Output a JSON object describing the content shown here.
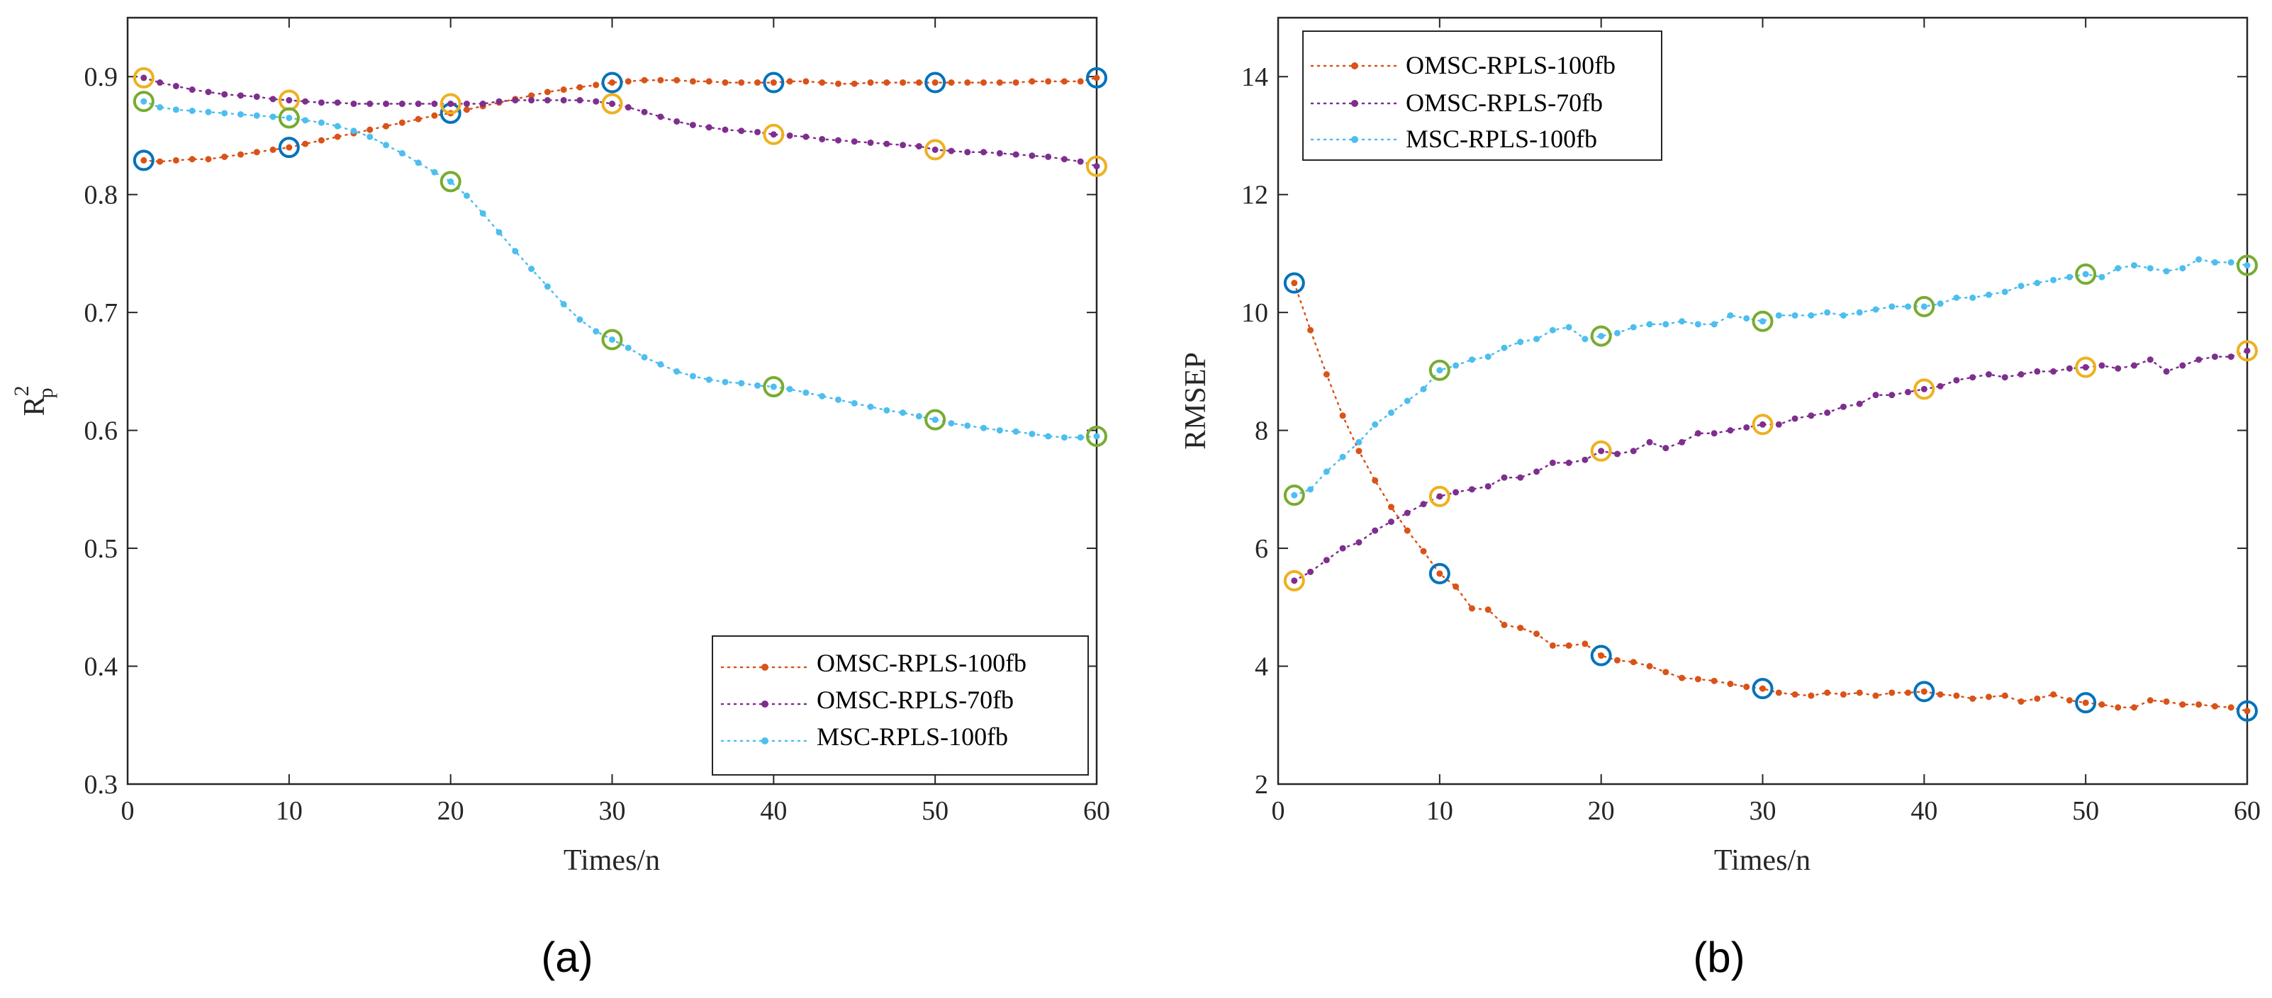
{
  "chart_data": [
    {
      "type": "line",
      "panel_label": "(a)",
      "xlabel": "Times/n",
      "ylabel": "R",
      "ylabel_sup": "2",
      "ylabel_sub": "p",
      "xlim": [
        0,
        60
      ],
      "ylim": [
        0.3,
        0.95
      ],
      "xticks": [
        "0",
        "10",
        "20",
        "30",
        "40",
        "50",
        "60"
      ],
      "yticks": [
        "0.3",
        "0.4",
        "0.5",
        "0.6",
        "0.7",
        "0.8",
        "0.9"
      ],
      "grid": false,
      "legend_position": "bottom-right",
      "series": [
        {
          "name": "OMSC-RPLS-100fb",
          "color": "#D95319",
          "x": [
            1,
            2,
            3,
            4,
            5,
            6,
            7,
            8,
            9,
            10,
            11,
            12,
            13,
            14,
            15,
            16,
            17,
            18,
            19,
            20,
            21,
            22,
            23,
            24,
            25,
            26,
            27,
            28,
            29,
            30,
            31,
            32,
            33,
            34,
            35,
            36,
            37,
            38,
            39,
            40,
            41,
            42,
            43,
            44,
            45,
            46,
            47,
            48,
            49,
            50,
            51,
            52,
            53,
            54,
            55,
            56,
            57,
            58,
            59,
            60
          ],
          "values": [
            0.829,
            0.828,
            0.829,
            0.83,
            0.83,
            0.832,
            0.834,
            0.836,
            0.838,
            0.84,
            0.843,
            0.846,
            0.849,
            0.852,
            0.855,
            0.858,
            0.861,
            0.864,
            0.867,
            0.869,
            0.872,
            0.875,
            0.878,
            0.881,
            0.884,
            0.887,
            0.889,
            0.891,
            0.893,
            0.895,
            0.896,
            0.897,
            0.897,
            0.897,
            0.896,
            0.896,
            0.895,
            0.895,
            0.895,
            0.895,
            0.896,
            0.896,
            0.895,
            0.894,
            0.894,
            0.895,
            0.895,
            0.895,
            0.895,
            0.895,
            0.895,
            0.895,
            0.895,
            0.895,
            0.895,
            0.896,
            0.896,
            0.896,
            0.896,
            0.899
          ],
          "markers": [
            {
              "x": 1,
              "y": 0.829,
              "color": "#0072BD"
            },
            {
              "x": 10,
              "y": 0.84,
              "color": "#0072BD"
            },
            {
              "x": 20,
              "y": 0.869,
              "color": "#0072BD"
            },
            {
              "x": 30,
              "y": 0.895,
              "color": "#0072BD"
            },
            {
              "x": 40,
              "y": 0.895,
              "color": "#0072BD"
            },
            {
              "x": 50,
              "y": 0.895,
              "color": "#0072BD"
            },
            {
              "x": 60,
              "y": 0.899,
              "color": "#0072BD"
            }
          ]
        },
        {
          "name": "OMSC-RPLS-70fb",
          "color": "#7E2F8E",
          "x": [
            1,
            2,
            3,
            4,
            5,
            6,
            7,
            8,
            9,
            10,
            11,
            12,
            13,
            14,
            15,
            16,
            17,
            18,
            19,
            20,
            21,
            22,
            23,
            24,
            25,
            26,
            27,
            28,
            29,
            30,
            31,
            32,
            33,
            34,
            35,
            36,
            37,
            38,
            39,
            40,
            41,
            42,
            43,
            44,
            45,
            46,
            47,
            48,
            49,
            50,
            51,
            52,
            53,
            54,
            55,
            56,
            57,
            58,
            59,
            60
          ],
          "values": [
            0.899,
            0.895,
            0.892,
            0.889,
            0.887,
            0.885,
            0.884,
            0.883,
            0.881,
            0.88,
            0.879,
            0.878,
            0.878,
            0.877,
            0.877,
            0.877,
            0.877,
            0.877,
            0.877,
            0.877,
            0.877,
            0.877,
            0.879,
            0.88,
            0.88,
            0.88,
            0.88,
            0.88,
            0.879,
            0.877,
            0.874,
            0.87,
            0.866,
            0.862,
            0.859,
            0.857,
            0.855,
            0.854,
            0.853,
            0.851,
            0.85,
            0.849,
            0.847,
            0.846,
            0.845,
            0.844,
            0.843,
            0.842,
            0.841,
            0.838,
            0.837,
            0.836,
            0.836,
            0.835,
            0.834,
            0.833,
            0.832,
            0.83,
            0.828,
            0.824
          ],
          "markers": [
            {
              "x": 1,
              "y": 0.899,
              "color": "#EDB120"
            },
            {
              "x": 10,
              "y": 0.88,
              "color": "#EDB120"
            },
            {
              "x": 20,
              "y": 0.877,
              "color": "#EDB120"
            },
            {
              "x": 30,
              "y": 0.877,
              "color": "#EDB120"
            },
            {
              "x": 40,
              "y": 0.851,
              "color": "#EDB120"
            },
            {
              "x": 50,
              "y": 0.838,
              "color": "#EDB120"
            },
            {
              "x": 60,
              "y": 0.824,
              "color": "#EDB120"
            }
          ]
        },
        {
          "name": "MSC-RPLS-100fb",
          "color": "#4DBEEE",
          "x": [
            1,
            2,
            3,
            4,
            5,
            6,
            7,
            8,
            9,
            10,
            11,
            12,
            13,
            14,
            15,
            16,
            17,
            18,
            19,
            20,
            21,
            22,
            23,
            24,
            25,
            26,
            27,
            28,
            29,
            30,
            31,
            32,
            33,
            34,
            35,
            36,
            37,
            38,
            39,
            40,
            41,
            42,
            43,
            44,
            45,
            46,
            47,
            48,
            49,
            50,
            51,
            52,
            53,
            54,
            55,
            56,
            57,
            58,
            59,
            60
          ],
          "values": [
            0.879,
            0.874,
            0.872,
            0.871,
            0.87,
            0.869,
            0.868,
            0.867,
            0.866,
            0.865,
            0.863,
            0.861,
            0.858,
            0.854,
            0.849,
            0.842,
            0.835,
            0.827,
            0.819,
            0.811,
            0.799,
            0.784,
            0.768,
            0.752,
            0.737,
            0.722,
            0.707,
            0.694,
            0.684,
            0.677,
            0.67,
            0.662,
            0.656,
            0.65,
            0.646,
            0.643,
            0.641,
            0.64,
            0.638,
            0.637,
            0.635,
            0.632,
            0.629,
            0.626,
            0.623,
            0.62,
            0.617,
            0.615,
            0.612,
            0.609,
            0.606,
            0.604,
            0.602,
            0.6,
            0.599,
            0.597,
            0.595,
            0.594,
            0.594,
            0.595
          ],
          "markers": [
            {
              "x": 1,
              "y": 0.879,
              "color": "#77AC30"
            },
            {
              "x": 10,
              "y": 0.865,
              "color": "#77AC30"
            },
            {
              "x": 20,
              "y": 0.811,
              "color": "#77AC30"
            },
            {
              "x": 30,
              "y": 0.677,
              "color": "#77AC30"
            },
            {
              "x": 40,
              "y": 0.637,
              "color": "#77AC30"
            },
            {
              "x": 50,
              "y": 0.609,
              "color": "#77AC30"
            },
            {
              "x": 60,
              "y": 0.595,
              "color": "#77AC30"
            }
          ]
        }
      ]
    },
    {
      "type": "line",
      "panel_label": "(b)",
      "xlabel": "Times/n",
      "ylabel": "RMSEP",
      "xlim": [
        0,
        60
      ],
      "ylim": [
        2,
        15
      ],
      "xticks": [
        "0",
        "10",
        "20",
        "30",
        "40",
        "50",
        "60"
      ],
      "yticks": [
        "2",
        "4",
        "6",
        "8",
        "10",
        "12",
        "14"
      ],
      "grid": false,
      "legend_position": "top-left",
      "series": [
        {
          "name": "OMSC-RPLS-100fb",
          "color": "#D95319",
          "x": [
            1,
            2,
            3,
            4,
            5,
            6,
            7,
            8,
            9,
            10,
            11,
            12,
            13,
            14,
            15,
            16,
            17,
            18,
            19,
            20,
            21,
            22,
            23,
            24,
            25,
            26,
            27,
            28,
            29,
            30,
            31,
            32,
            33,
            34,
            35,
            36,
            37,
            38,
            39,
            40,
            41,
            42,
            43,
            44,
            45,
            46,
            47,
            48,
            49,
            50,
            51,
            52,
            53,
            54,
            55,
            56,
            57,
            58,
            59,
            60
          ],
          "values": [
            10.5,
            9.7,
            8.95,
            8.25,
            7.65,
            7.15,
            6.7,
            6.3,
            5.95,
            5.57,
            5.35,
            4.98,
            4.96,
            4.7,
            4.65,
            4.55,
            4.35,
            4.35,
            4.38,
            4.18,
            4.1,
            4.07,
            4.0,
            3.9,
            3.8,
            3.78,
            3.75,
            3.7,
            3.65,
            3.62,
            3.55,
            3.52,
            3.5,
            3.55,
            3.52,
            3.55,
            3.5,
            3.55,
            3.55,
            3.57,
            3.52,
            3.5,
            3.45,
            3.48,
            3.5,
            3.4,
            3.45,
            3.52,
            3.42,
            3.38,
            3.35,
            3.3,
            3.3,
            3.42,
            3.4,
            3.35,
            3.35,
            3.32,
            3.3,
            3.24
          ],
          "markers": [
            {
              "x": 1,
              "y": 10.5,
              "color": "#0072BD"
            },
            {
              "x": 10,
              "y": 5.57,
              "color": "#0072BD"
            },
            {
              "x": 20,
              "y": 4.18,
              "color": "#0072BD"
            },
            {
              "x": 30,
              "y": 3.62,
              "color": "#0072BD"
            },
            {
              "x": 40,
              "y": 3.57,
              "color": "#0072BD"
            },
            {
              "x": 50,
              "y": 3.38,
              "color": "#0072BD"
            },
            {
              "x": 60,
              "y": 3.24,
              "color": "#0072BD"
            }
          ]
        },
        {
          "name": "OMSC-RPLS-70fb",
          "color": "#7E2F8E",
          "x": [
            1,
            2,
            3,
            4,
            5,
            6,
            7,
            8,
            9,
            10,
            11,
            12,
            13,
            14,
            15,
            16,
            17,
            18,
            19,
            20,
            21,
            22,
            23,
            24,
            25,
            26,
            27,
            28,
            29,
            30,
            31,
            32,
            33,
            34,
            35,
            36,
            37,
            38,
            39,
            40,
            41,
            42,
            43,
            44,
            45,
            46,
            47,
            48,
            49,
            50,
            51,
            52,
            53,
            54,
            55,
            56,
            57,
            58,
            59,
            60
          ],
          "values": [
            5.45,
            5.6,
            5.8,
            6.0,
            6.1,
            6.3,
            6.45,
            6.6,
            6.75,
            6.88,
            6.95,
            7.0,
            7.05,
            7.2,
            7.2,
            7.3,
            7.45,
            7.45,
            7.5,
            7.65,
            7.6,
            7.65,
            7.8,
            7.7,
            7.8,
            7.95,
            7.95,
            8.0,
            8.05,
            8.1,
            8.1,
            8.2,
            8.25,
            8.3,
            8.4,
            8.45,
            8.6,
            8.6,
            8.65,
            8.7,
            8.75,
            8.85,
            8.9,
            8.95,
            8.9,
            8.95,
            9.0,
            9.0,
            9.05,
            9.07,
            9.1,
            9.05,
            9.1,
            9.2,
            9.0,
            9.1,
            9.2,
            9.25,
            9.25,
            9.35
          ],
          "markers": [
            {
              "x": 1,
              "y": 5.45,
              "color": "#EDB120"
            },
            {
              "x": 10,
              "y": 6.88,
              "color": "#EDB120"
            },
            {
              "x": 20,
              "y": 7.65,
              "color": "#EDB120"
            },
            {
              "x": 30,
              "y": 8.1,
              "color": "#EDB120"
            },
            {
              "x": 40,
              "y": 8.7,
              "color": "#EDB120"
            },
            {
              "x": 50,
              "y": 9.07,
              "color": "#EDB120"
            },
            {
              "x": 60,
              "y": 9.35,
              "color": "#EDB120"
            }
          ]
        },
        {
          "name": "MSC-RPLS-100fb",
          "color": "#4DBEEE",
          "x": [
            1,
            2,
            3,
            4,
            5,
            6,
            7,
            8,
            9,
            10,
            11,
            12,
            13,
            14,
            15,
            16,
            17,
            18,
            19,
            20,
            21,
            22,
            23,
            24,
            25,
            26,
            27,
            28,
            29,
            30,
            31,
            32,
            33,
            34,
            35,
            36,
            37,
            38,
            39,
            40,
            41,
            42,
            43,
            44,
            45,
            46,
            47,
            48,
            49,
            50,
            51,
            52,
            53,
            54,
            55,
            56,
            57,
            58,
            59,
            60
          ],
          "values": [
            6.9,
            7.0,
            7.3,
            7.55,
            7.8,
            8.1,
            8.3,
            8.5,
            8.7,
            9.02,
            9.1,
            9.2,
            9.25,
            9.4,
            9.5,
            9.55,
            9.7,
            9.75,
            9.55,
            9.6,
            9.65,
            9.75,
            9.8,
            9.8,
            9.85,
            9.8,
            9.8,
            9.95,
            9.9,
            9.85,
            9.95,
            9.95,
            9.95,
            10.0,
            9.95,
            10.0,
            10.05,
            10.1,
            10.1,
            10.1,
            10.15,
            10.25,
            10.25,
            10.3,
            10.35,
            10.45,
            10.5,
            10.55,
            10.6,
            10.65,
            10.6,
            10.75,
            10.8,
            10.75,
            10.7,
            10.75,
            10.9,
            10.85,
            10.85,
            10.8
          ],
          "markers": [
            {
              "x": 1,
              "y": 6.9,
              "color": "#77AC30"
            },
            {
              "x": 10,
              "y": 9.02,
              "color": "#77AC30"
            },
            {
              "x": 20,
              "y": 9.6,
              "color": "#77AC30"
            },
            {
              "x": 30,
              "y": 9.85,
              "color": "#77AC30"
            },
            {
              "x": 40,
              "y": 10.1,
              "color": "#77AC30"
            },
            {
              "x": 50,
              "y": 10.65,
              "color": "#77AC30"
            },
            {
              "x": 60,
              "y": 10.8,
              "color": "#77AC30"
            }
          ]
        }
      ]
    }
  ]
}
